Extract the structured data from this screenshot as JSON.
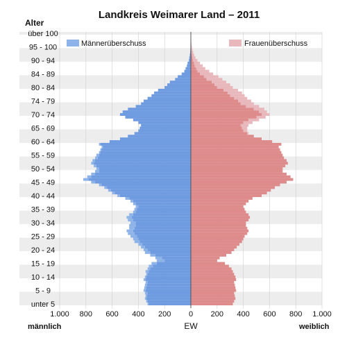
{
  "chart_data": {
    "type": "bar",
    "title": "Landkreis Weimarer Land – 2011",
    "y_axis_title": "Alter",
    "xlabel": "EW",
    "left_label": "männlich",
    "right_label": "weiblich",
    "legend": {
      "male_surplus": "Männerüberschuss",
      "female_surplus": "Frauenüberschuss"
    },
    "x_ticks": [
      "1.000",
      "800",
      "600",
      "400",
      "200",
      "0",
      "200",
      "400",
      "600",
      "800",
      "1.000"
    ],
    "xlim": [
      -1000,
      1000
    ],
    "age_ticks": [
      {
        "label": "unter 5",
        "age": 0
      },
      {
        "label": "5 - 9",
        "age": 5
      },
      {
        "label": "10 - 14",
        "age": 10
      },
      {
        "label": "15 - 19",
        "age": 15
      },
      {
        "label": "20 - 24",
        "age": 20
      },
      {
        "label": "25 - 29",
        "age": 25
      },
      {
        "label": "30 - 34",
        "age": 30
      },
      {
        "label": "35 - 39",
        "age": 35
      },
      {
        "label": "40 - 44",
        "age": 40
      },
      {
        "label": "45 - 49",
        "age": 45
      },
      {
        "label": "50 - 54",
        "age": 50
      },
      {
        "label": "55 - 59",
        "age": 55
      },
      {
        "label": "60 - 64",
        "age": 60
      },
      {
        "label": "65 - 69",
        "age": 65
      },
      {
        "label": "70 - 74",
        "age": 70
      },
      {
        "label": "74 - 79",
        "age": 75
      },
      {
        "label": "80 - 84",
        "age": 80
      },
      {
        "label": "84 - 89",
        "age": 85
      },
      {
        "label": "90 - 94",
        "age": 90
      },
      {
        "label": "95 - 100",
        "age": 95
      },
      {
        "label": "über 100",
        "age": 100
      }
    ],
    "ages": [
      0,
      1,
      2,
      3,
      4,
      5,
      6,
      7,
      8,
      9,
      10,
      11,
      12,
      13,
      14,
      15,
      16,
      17,
      18,
      19,
      20,
      21,
      22,
      23,
      24,
      25,
      26,
      27,
      28,
      29,
      30,
      31,
      32,
      33,
      34,
      35,
      36,
      37,
      38,
      39,
      40,
      41,
      42,
      43,
      44,
      45,
      46,
      47,
      48,
      49,
      50,
      51,
      52,
      53,
      54,
      55,
      56,
      57,
      58,
      59,
      60,
      61,
      62,
      63,
      64,
      65,
      66,
      67,
      68,
      69,
      70,
      71,
      72,
      73,
      74,
      75,
      76,
      77,
      78,
      79,
      80,
      81,
      82,
      83,
      84,
      85,
      86,
      87,
      88,
      89,
      90,
      91,
      92,
      93,
      94,
      95,
      96,
      97,
      98,
      99,
      100
    ],
    "series": [
      {
        "name": "männlich",
        "values": [
          330,
          340,
          350,
          345,
          350,
          360,
          355,
          350,
          345,
          360,
          350,
          340,
          345,
          330,
          320,
          300,
          260,
          270,
          310,
          350,
          360,
          380,
          400,
          430,
          440,
          460,
          480,
          490,
          470,
          470,
          460,
          480,
          490,
          470,
          440,
          430,
          420,
          440,
          460,
          500,
          560,
          600,
          630,
          660,
          700,
          760,
          820,
          790,
          760,
          730,
          720,
          740,
          760,
          750,
          730,
          720,
          700,
          690,
          680,
          700,
          620,
          540,
          480,
          430,
          400,
          390,
          380,
          400,
          440,
          500,
          540,
          520,
          480,
          420,
          380,
          360,
          330,
          300,
          280,
          250,
          200,
          180,
          160,
          120,
          100,
          70,
          50,
          40,
          30,
          25,
          15,
          12,
          8,
          5,
          4,
          3,
          2,
          2,
          1,
          1,
          1
        ],
        "color": "#8DB3E8"
      },
      {
        "name": "weiblich",
        "values": [
          320,
          330,
          340,
          335,
          330,
          345,
          340,
          335,
          330,
          345,
          340,
          330,
          320,
          310,
          290,
          260,
          200,
          220,
          270,
          310,
          330,
          350,
          370,
          390,
          400,
          410,
          430,
          440,
          430,
          420,
          420,
          440,
          450,
          440,
          420,
          410,
          400,
          420,
          440,
          470,
          540,
          580,
          610,
          640,
          680,
          730,
          780,
          760,
          730,
          700,
          700,
          720,
          740,
          730,
          710,
          700,
          690,
          680,
          670,
          690,
          620,
          540,
          480,
          440,
          430,
          430,
          440,
          470,
          520,
          570,
          600,
          580,
          560,
          520,
          480,
          460,
          430,
          410,
          390,
          360,
          320,
          300,
          270,
          240,
          210,
          170,
          140,
          110,
          90,
          70,
          50,
          35,
          25,
          18,
          12,
          8,
          5,
          3,
          2,
          1,
          1
        ],
        "color": "#E39A9A"
      }
    ],
    "colors": {
      "male_surplus": "#8DB3E8",
      "male_base": "#6F9BE0",
      "female_surplus": "#E8B8BC",
      "female_base": "#DD8B8B",
      "band": "#EDEDED"
    }
  }
}
